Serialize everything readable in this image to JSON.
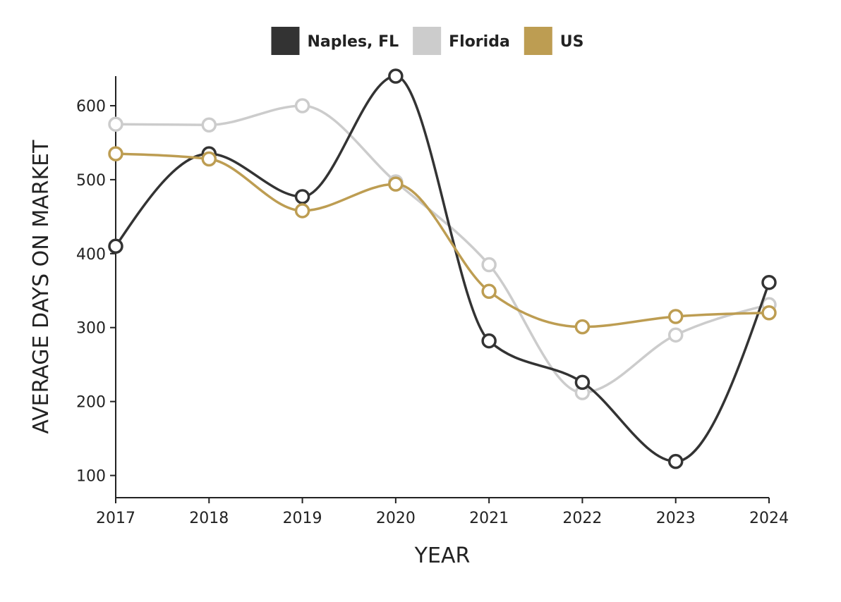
{
  "chart_data": {
    "type": "line",
    "title": "",
    "xlabel": "YEAR",
    "ylabel": "AVERAGE DAYS ON MARKET",
    "x": [
      "2017",
      "2018",
      "2019",
      "2020",
      "2021",
      "2022",
      "2023",
      "2024"
    ],
    "yticks": [
      "100",
      "200",
      "300",
      "400",
      "500",
      "600"
    ],
    "ylim": [
      70,
      640
    ],
    "grid": false,
    "legend": "top-center",
    "series": [
      {
        "name": "Naples, FL",
        "color": "#333333",
        "values": [
          410,
          535,
          477,
          640,
          282,
          226,
          119,
          361
        ]
      },
      {
        "name": "Florida",
        "color": "#cccccc",
        "values": [
          575,
          574,
          600,
          497,
          385,
          212,
          290,
          331
        ]
      },
      {
        "name": "US",
        "color": "#bd9d52",
        "values": [
          535,
          528,
          458,
          494,
          349,
          301,
          315,
          320
        ]
      }
    ]
  }
}
